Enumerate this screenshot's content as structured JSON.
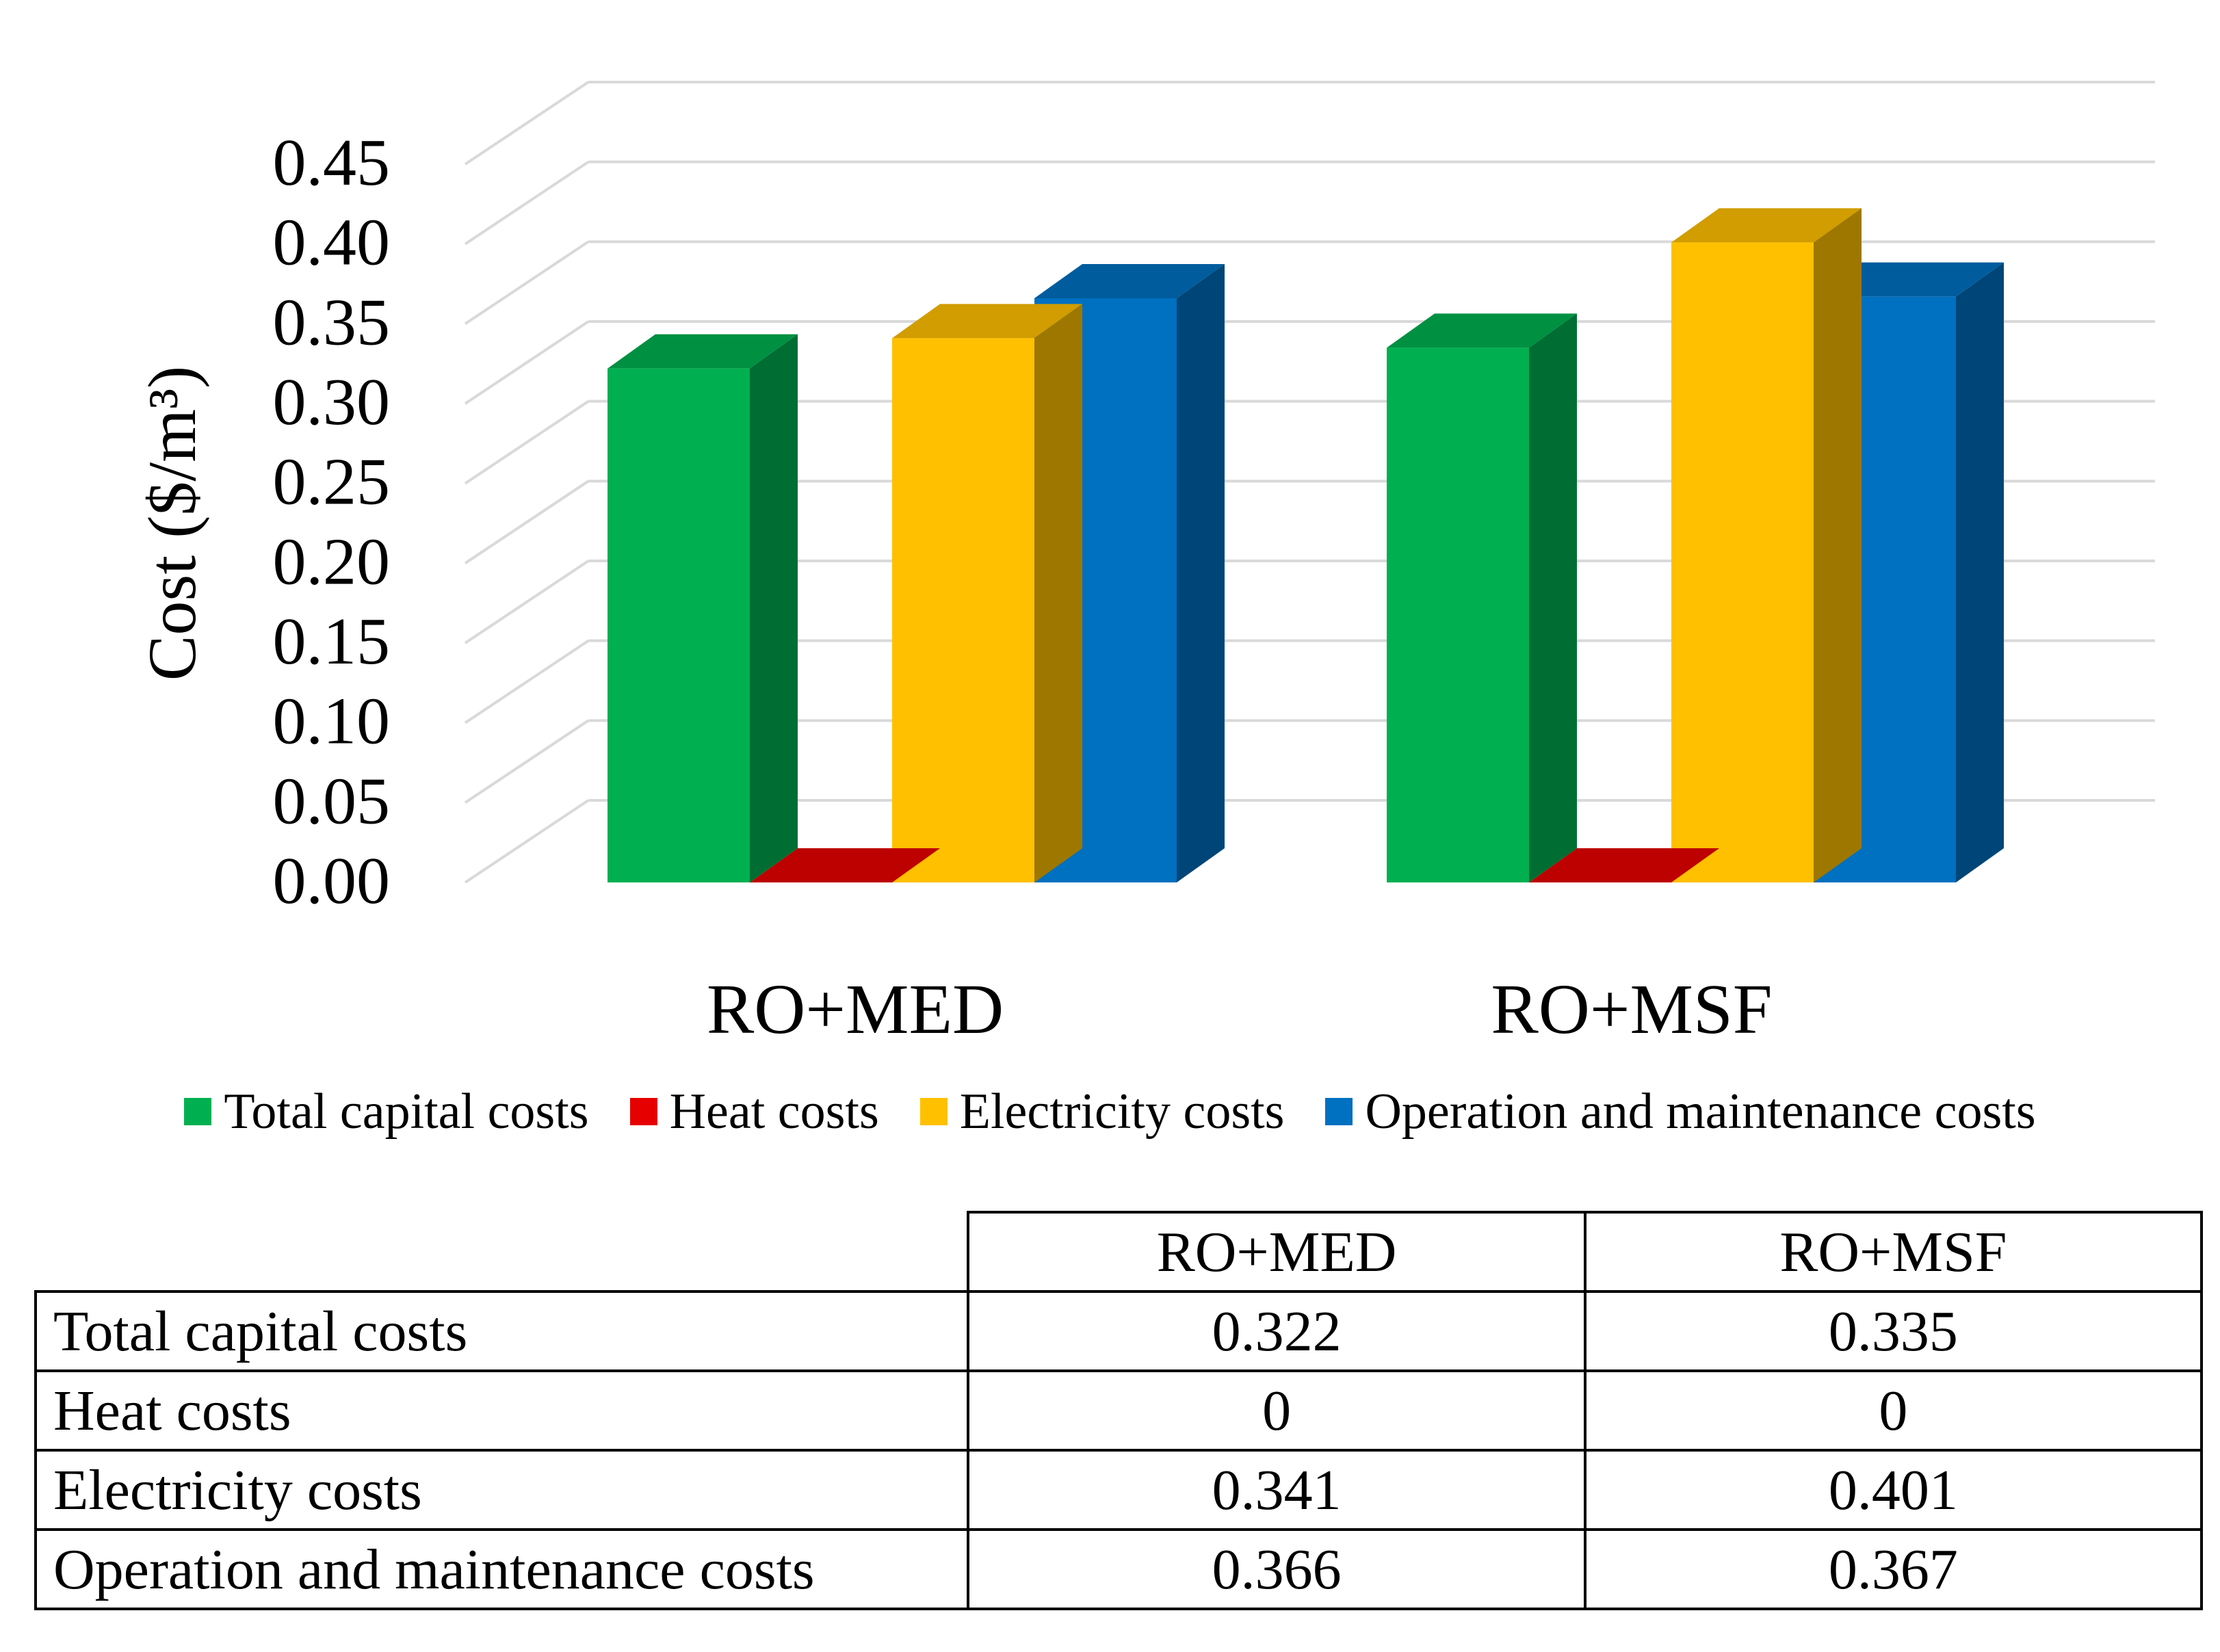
{
  "colors": {
    "total_capital": "#00B050",
    "heat": "#E60000",
    "electricity": "#FFC000",
    "operation": "#0070C0"
  },
  "chart_data": {
    "type": "bar",
    "style": "3d-clustered-column",
    "ylabel": "Cost ($/m³)",
    "ylim": [
      0,
      0.45
    ],
    "ytick_step": 0.05,
    "yticks": [
      "0.00",
      "0.05",
      "0.10",
      "0.15",
      "0.20",
      "0.25",
      "0.30",
      "0.35",
      "0.40",
      "0.45"
    ],
    "grid": true,
    "legend_position": "bottom",
    "categories": [
      "RO+MED",
      "RO+MSF"
    ],
    "series": [
      {
        "name": "Total capital costs",
        "values": [
          0.322,
          0.335
        ],
        "color_key": "total_capital"
      },
      {
        "name": "Heat costs",
        "values": [
          0,
          0
        ],
        "color_key": "heat"
      },
      {
        "name": "Electricity costs",
        "values": [
          0.341,
          0.401
        ],
        "color_key": "electricity"
      },
      {
        "name": "Operation and maintenance costs",
        "values": [
          0.366,
          0.367
        ],
        "color_key": "operation"
      }
    ]
  },
  "table": {
    "columns": [
      "RO+MED",
      "RO+MSF"
    ],
    "rows": [
      {
        "label": "Total capital costs",
        "values": [
          "0.322",
          "0.335"
        ]
      },
      {
        "label": "Heat costs",
        "values": [
          "0",
          "0"
        ]
      },
      {
        "label": "Electricity costs",
        "values": [
          "0.341",
          "0.401"
        ]
      },
      {
        "label": "Operation and maintenance costs",
        "values": [
          "0.366",
          "0.367"
        ]
      }
    ]
  }
}
